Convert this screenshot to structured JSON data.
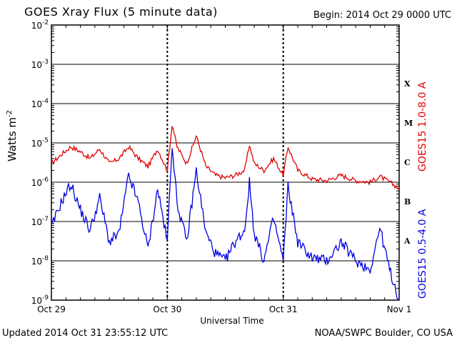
{
  "header": {
    "title": "GOES Xray Flux (5 minute data)",
    "begin": "Begin:  2014 Oct 29 0000 UTC"
  },
  "footer": {
    "updated": "Updated 2014 Oct 31 23:55:12 UTC",
    "credit": "NOAA/SWPC Boulder, CO USA"
  },
  "colors": {
    "long_channel": "#e00000",
    "short_channel": "#0000e0",
    "grid": "#000000"
  },
  "chart_data": {
    "type": "line",
    "title": "GOES Xray Flux (5 minute data)",
    "xlabel": "Universal Time",
    "ylabel": "Watts m",
    "ylabel_sup": "-2",
    "y_scale": "log",
    "ylim": [
      1e-09,
      0.01
    ],
    "xlim": [
      "2014-10-29",
      "2014-11-01"
    ],
    "grid": true,
    "x_ticks": [
      "Oct 29",
      "Oct 30",
      "Oct 31",
      "Nov 1"
    ],
    "y_ticks": [
      {
        "base": "10",
        "exp": "-2"
      },
      {
        "base": "10",
        "exp": "-3"
      },
      {
        "base": "10",
        "exp": "-4"
      },
      {
        "base": "10",
        "exp": "-5"
      },
      {
        "base": "10",
        "exp": "-6"
      },
      {
        "base": "10",
        "exp": "-7"
      },
      {
        "base": "10",
        "exp": "-8"
      },
      {
        "base": "10",
        "exp": "-9"
      }
    ],
    "flare_classes": [
      "X",
      "M",
      "C",
      "B",
      "A"
    ],
    "series": [
      {
        "name": "GOES15 1.0-8.0 A",
        "color": "#e00000",
        "x": [
          "2014-10-29 00:00",
          "2014-10-29 02:00",
          "2014-10-29 04:00",
          "2014-10-29 06:00",
          "2014-10-29 08:00",
          "2014-10-29 10:00",
          "2014-10-29 12:00",
          "2014-10-29 14:00",
          "2014-10-29 16:00",
          "2014-10-29 18:00",
          "2014-10-29 20:00",
          "2014-10-29 22:00",
          "2014-10-30 00:00",
          "2014-10-30 01:00",
          "2014-10-30 02:00",
          "2014-10-30 04:00",
          "2014-10-30 06:00",
          "2014-10-30 08:00",
          "2014-10-30 10:00",
          "2014-10-30 12:00",
          "2014-10-30 14:00",
          "2014-10-30 16:00",
          "2014-10-30 17:00",
          "2014-10-30 18:00",
          "2014-10-30 20:00",
          "2014-10-30 22:00",
          "2014-10-31 00:00",
          "2014-10-31 01:00",
          "2014-10-31 03:00",
          "2014-10-31 06:00",
          "2014-10-31 09:00",
          "2014-10-31 12:00",
          "2014-10-31 15:00",
          "2014-10-31 18:00",
          "2014-10-31 20:00",
          "2014-10-31 22:00",
          "2014-11-01 00:00"
        ],
        "values": [
          3e-06,
          5e-06,
          8e-06,
          6e-06,
          4e-06,
          7e-06,
          3e-06,
          4e-06,
          8e-06,
          4e-06,
          2.5e-06,
          7e-06,
          2e-06,
          3e-05,
          8e-06,
          3e-06,
          1.5e-05,
          2.5e-06,
          1.5e-06,
          1.3e-06,
          1.5e-06,
          2e-06,
          9e-06,
          3e-06,
          2e-06,
          4e-06,
          1.5e-06,
          8e-06,
          2e-06,
          1.2e-06,
          1.1e-06,
          1.5e-06,
          1.1e-06,
          1e-06,
          1.4e-06,
          1e-06,
          7e-07
        ]
      },
      {
        "name": "GOES15 0.5-4.0 A",
        "color": "#0000e0",
        "x": [
          "2014-10-29 00:00",
          "2014-10-29 02:00",
          "2014-10-29 04:00",
          "2014-10-29 06:00",
          "2014-10-29 08:00",
          "2014-10-29 10:00",
          "2014-10-29 12:00",
          "2014-10-29 14:00",
          "2014-10-29 16:00",
          "2014-10-29 18:00",
          "2014-10-29 20:00",
          "2014-10-29 22:00",
          "2014-10-30 00:00",
          "2014-10-30 01:00",
          "2014-10-30 02:00",
          "2014-10-30 04:00",
          "2014-10-30 06:00",
          "2014-10-30 08:00",
          "2014-10-30 10:00",
          "2014-10-30 12:00",
          "2014-10-30 14:00",
          "2014-10-30 16:00",
          "2014-10-30 17:00",
          "2014-10-30 18:00",
          "2014-10-30 20:00",
          "2014-10-30 22:00",
          "2014-10-31 00:00",
          "2014-10-31 01:00",
          "2014-10-31 03:00",
          "2014-10-31 06:00",
          "2014-10-31 09:00",
          "2014-10-31 12:00",
          "2014-10-31 15:00",
          "2014-10-31 18:00",
          "2014-10-31 20:00",
          "2014-10-31 22:00",
          "2014-11-01 00:00"
        ],
        "values": [
          7e-08,
          3e-07,
          9e-07,
          2e-07,
          6e-08,
          4e-07,
          3e-08,
          5e-08,
          1.5e-06,
          3e-07,
          2e-08,
          7e-07,
          3e-08,
          1e-05,
          3e-07,
          3e-08,
          2e-06,
          5e-08,
          1.5e-08,
          1e-08,
          3e-08,
          6e-08,
          1e-06,
          5e-08,
          1e-08,
          1.2e-07,
          1e-08,
          8e-07,
          3e-08,
          1.2e-08,
          1e-08,
          3e-08,
          1e-08,
          6e-09,
          7e-08,
          6e-09,
          1e-09
        ]
      }
    ]
  }
}
